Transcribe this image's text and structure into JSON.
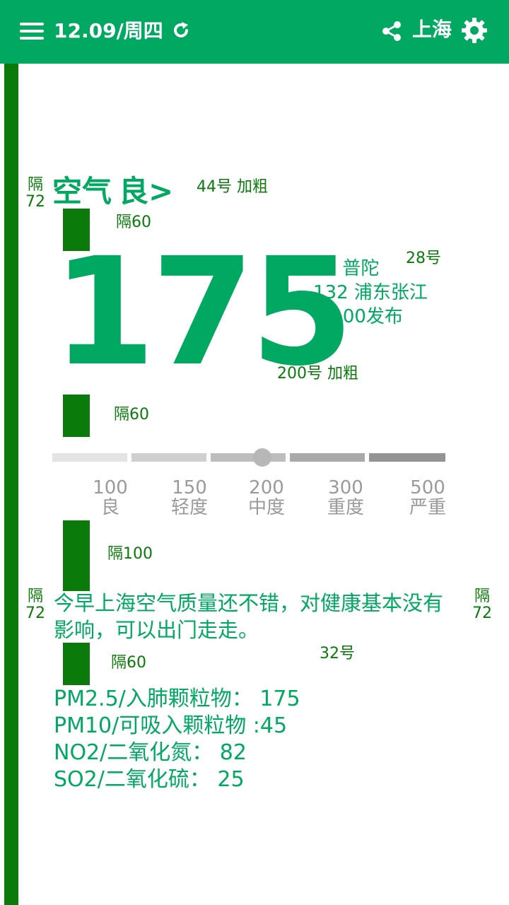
{
  "header": {
    "date": "12.09/周四",
    "city": "上海",
    "menu_icon": "menu-icon",
    "refresh_icon": "refresh-icon",
    "share_icon": "share-icon",
    "settings_icon": "gear-icon"
  },
  "colors": {
    "header_bg": "#00a862",
    "accent_teal": "#00a862",
    "annotation_green": "#0a7a0a"
  },
  "aqi": {
    "label": "空气",
    "level": "良",
    "chevron": ">",
    "value": "175",
    "stations": [
      "43 普陀",
      "132 浦东张江"
    ],
    "publish_time": "17:00发布"
  },
  "scale": {
    "marker_value": 175,
    "ticks": [
      {
        "value": "100",
        "label": "良"
      },
      {
        "value": "150",
        "label": "轻度"
      },
      {
        "value": "200",
        "label": "中度"
      },
      {
        "value": "300",
        "label": "重度"
      },
      {
        "value": "500",
        "label": "严重"
      }
    ]
  },
  "advice": "今早上海空气质量还不错，对健康基本没有影响，可以出门走走。",
  "pollutants": [
    "PM2.5/入肺颗粒物：  175",
    "PM10/可吸入颗粒物  :45",
    "NO2/二氧化氮：  82",
    "SO2/二氧化硫：   25"
  ],
  "annotations": {
    "gap72": "隔",
    "gap72_num": "72",
    "title_size": "44号 加粗",
    "gap60": "隔60",
    "station_size": "28号",
    "value_size": "200号 加粗",
    "gap100": "隔100",
    "body_size": "32号"
  }
}
